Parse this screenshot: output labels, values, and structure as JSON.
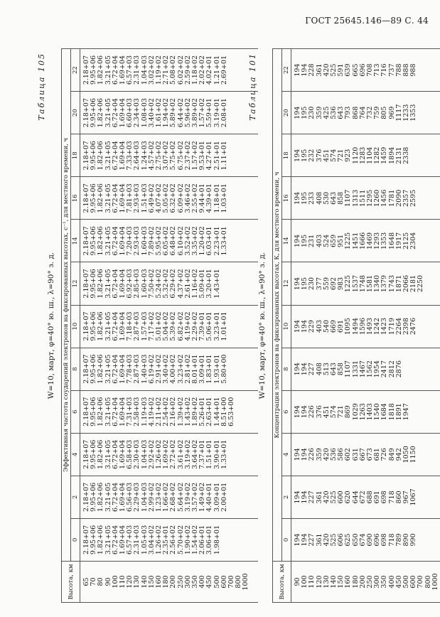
{
  "page_header": "ГОСТ 25645.146—89 С. 44",
  "table1": {
    "name": "Таблица 101",
    "title": "W=10, март, φ=40° ю. ш., λ=90° з. д.",
    "height_label": "Высота, км",
    "group_label": "Концентрация электронов на фиксированных высотах, К, для местного времени, ч",
    "columns": [
      "0",
      "2",
      "4",
      "6",
      "8",
      "10",
      "12",
      "14",
      "16",
      "18",
      "20",
      "22"
    ],
    "heights": "90\n100\n110\n120\n130\n140\n150\n160\n180\n200\n250\n300\n350\n400\n450\n500\n600\n700\n800\n1000",
    "data": [
      "194\n194\n227\n361\n420\n525\n606\n625\n650\n674\n690\n696\n698\n718\n789\n890\n990",
      "194\n194\n227\n361\n420\n525\n600\n620\n644\n672\n688\n691\n698\n718\n860\n967\n1067",
      "194\n194\n226\n359\n420\n536\n586\n602\n631\n667\n673\n681\n726\n849\n942\n1050\n1150",
      "194\n194\n226\n376\n451\n574\n721\n869\n1029\n1263\n1403\n1540\n1684\n1818\n1891\n1947",
      "194\n194\n227\n408\n513\n643\n858\n1107\n1331\n1467\n1562\n1954\n2417\n2812\n2876",
      "194\n194\n229\n403\n540\n669\n691\n1095\n1494\n1596\n1493\n1242\n1423\n1719\n2264\n2398\n2476",
      "194\n195\n230\n377\n559\n692\n983\n1225\n1537\n1748\n1581\n1340\n1379\n1743\n1871\n2066\n2181\n2250",
      "194\n195\n231\n403\n524\n659\n951\n1225\n1451\n1666\n1469\n1293\n1353\n1648\n1917\n2125\n2304",
      "194\n195\n233\n408\n530\n643\n858\n1107\n1313\n1511\n1295\n1260\n1456\n1781\n2090\n2357\n2595",
      "194\n195\n232\n376\n451\n574\n721\n923\n1120\n1283\n1104\n1282\n1459\n1894\n2131\n2338",
      "194\n195\n230\n359\n425\n536\n643\n793\n868\n764\n732\n759\n805\n969\n1117\n1233\n1353",
      "194\n194\n228\n361\n420\n525\n591\n639\n665\n696\n708\n713\n716\n737\n788\n888\n988"
    ]
  },
  "table2": {
    "name": "Таблица 105",
    "title": "W=10, март, φ=40° ю. ш., λ=90° з. д.",
    "height_label": "Высота, км",
    "group_label": "Эффективная частота соударений электронов на фиксированных высотах, с⁻¹, для местного времени, ч",
    "columns": [
      "0",
      "2",
      "4",
      "6",
      "8",
      "10",
      "12",
      "14",
      "16",
      "18",
      "20",
      "22"
    ],
    "heights": "65\n70\n80\n90\n100\n110\n120\n130\n140\n150\n160\n180\n200\n250\n300\n350\n400\n450\n500\n600\n700\n800\n1000",
    "data": [
      "2.18+07\n9.95+06\n1.82+06\n3.21+05\n6.72+04\n1.69+04\n6.57+03\n2.31+03\n1.05+03\n3.04+02\n1.26+02\n2.35+01\n2.56+02\n5.70+02\n1.90+02\n1.54+02\n2.06+01\n3.06+01\n1.98+01",
      "2.18+07\n9.95+06\n1.82+06\n3.21+05\n6.72+04\n1.69+04\n6.56+03\n2.29+03\n1.04+03\n2.99+02\n1.23+02\n1.66+02\n2.68+02\n5.64+02\n3.19+02\n3.57+02\n1.49+02\n4.40+01\n3.09+01\n2.00+01",
      "2.18+07\n9.95+06\n1.82+06\n3.21+05\n6.72+04\n1.69+04\n6.58+03\n2.30+03\n1.04+03\n2.92+02\n1.26+02\n1.69+02\n2.72+02\n3.61+02\n3.19+02\n3.64+02\n7.37+01\n1.51+01\n3.90+01\n1.33+01",
      "2.18+07\n9.95+06\n1.82+06\n3.21+05\n6.72+04\n1.69+04\n7.31+03\n2.58+03\n1.19+03\n4.19+02\n2.11+02\n2.54+02\n2.16+02\n1.39+02\n1.43+02\n1.89+02\n5.26+01\n2.63+01\n1.44+01\n8.51+00\n6.53+00",
      "2.18+07\n9.95+06\n1.82+06\n3.21+05\n6.72+04\n1.69+04\n7.78+03\n2.87+03\n1.40+03\n6.19+02\n2.91+02\n3.40+02\n4.00+02\n3.23+02\n2.81+02\n8.01+01\n3.09+01\n1.83+01\n1.93+01\n5.80+00",
      "2.18+07\n9.95+06\n1.82+06\n3.21+05\n6.72+04\n1.69+04\n7.18+03\n2.87+03\n1.57+03\n7.17+02\n5.01+02\n5.04+02\n5.39+02\n6.82+02\n4.19+02\n2.29+02\n7.39+01\n5.06+01\n3.23+01\n1.01+01",
      "2.18+07\n9.95+06\n1.82+06\n3.21+05\n6.72+04\n1.69+04\n6.92+03\n2.85+03\n1.60+03\n7.50+02\n5.24+02\n5.32+02\n6.29+02\n4.37+02\n2.61+02\n1.16+02\n5.09+01\n3.20+01\n1.43+01",
      "2.18+07\n9.95+06\n1.82+06\n3.21+05\n6.72+04\n1.69+04\n7.20+03\n2.93+03\n1.60+03\n7.89+02\n5.95+02\n6.05+02\n6.48+02\n6.10+02\n3.52+02\n3.35+02\n1.20+02\n6.03+01\n2.23+01\n1.33+01",
      "2.18+07\n9.95+06\n1.82+06\n3.21+05\n6.72+04\n1.69+04\n7.81+03\n2.93+03\n1.51+03\n6.49+02\n4.07+02\n5.05+02\n6.32+02\n6.09+02\n3.46+02\n2.55+02\n9.44+01\n4.39+01\n1.18+01\n1.03+01",
      "2.18+07\n9.95+06\n1.82+06\n3.21+05\n6.72+04\n1.69+04\n7.33+03\n2.64+03\n1.24+03\n4.57+02\n2.75+02\n3.07+02\n5.75+02\n6.75+02\n2.37+02\n1.57+02\n9.53+01\n4.27+01\n2.51+01\n1.11+01",
      "2.18+07\n9.95+06\n1.82+06\n3.21+05\n6.72+04\n1.69+04\n6.60+03\n2.34+03\n1.08+03\n3.40+02\n1.61+02\n1.94+02\n5.89+02\n6.44+02\n5.96+02\n3.89+02\n1.57+02\n5.59+01\n3.19+01\n2.08+01",
      "2.18+07\n9.95+06\n1.82+06\n3.21+05\n6.72+04\n1.69+04\n6.57+03\n2.31+03\n1.04+03\n3.02+02\n1.19+02\n2.71+02\n5.08+02\n6.02+02\n2.59+02\n1.18+02\n2.02+02\n4.02+01\n1.21+01\n2.69+01"
    ]
  }
}
